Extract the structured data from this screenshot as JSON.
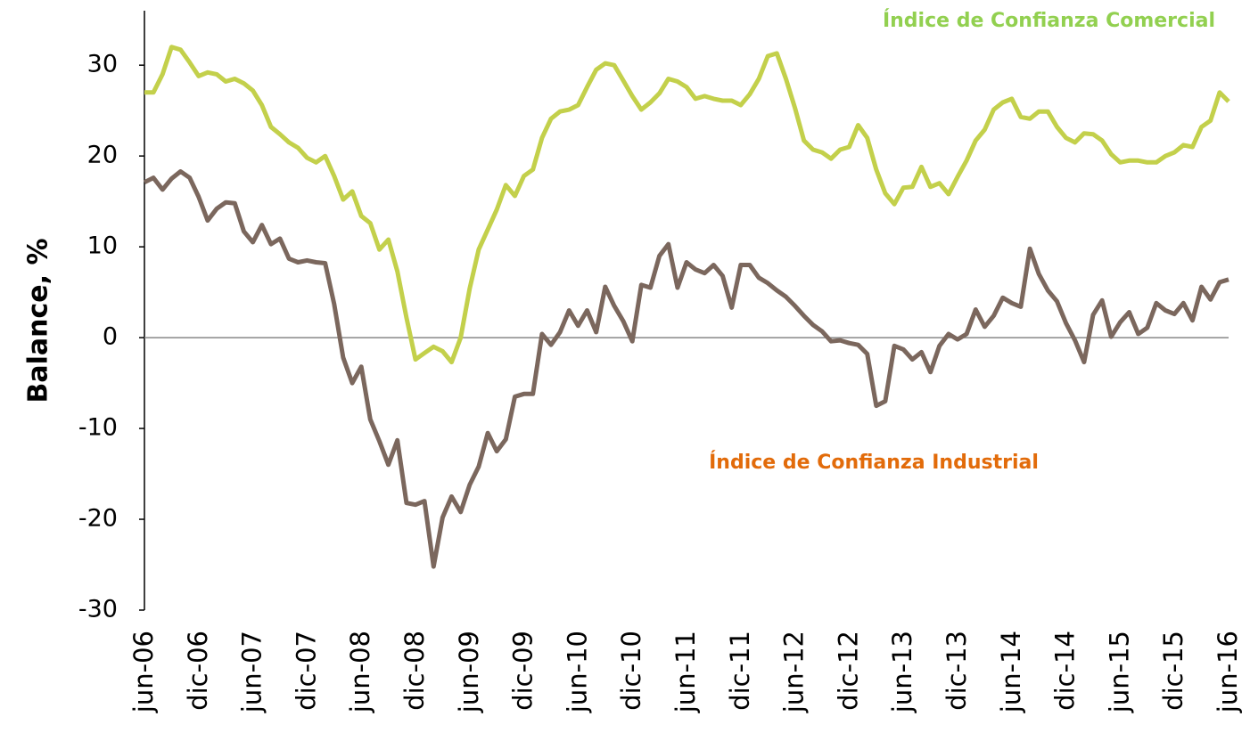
{
  "chart_data": {
    "type": "line",
    "y_label": "Balance, %",
    "categories": [
      "jun-06",
      null,
      null,
      null,
      null,
      null,
      "dic-06",
      null,
      null,
      null,
      null,
      null,
      "jun-07",
      null,
      null,
      null,
      null,
      null,
      "dic-07",
      null,
      null,
      null,
      null,
      null,
      "jun-08",
      null,
      null,
      null,
      null,
      null,
      "dic-08",
      null,
      null,
      null,
      null,
      null,
      "jun-09",
      null,
      null,
      null,
      null,
      null,
      "dic-09",
      null,
      null,
      null,
      null,
      null,
      "jun-10",
      null,
      null,
      null,
      null,
      null,
      "dic-10",
      null,
      null,
      null,
      null,
      null,
      "jun-11",
      null,
      null,
      null,
      null,
      null,
      "dic-11",
      null,
      null,
      null,
      null,
      null,
      "jun-12",
      null,
      null,
      null,
      null,
      null,
      "dic-12",
      null,
      null,
      null,
      null,
      null,
      "jun-13",
      null,
      null,
      null,
      null,
      null,
      "dic-13",
      null,
      null,
      null,
      null,
      null,
      "jun-14",
      null,
      null,
      null,
      null,
      null,
      "dic-14",
      null,
      null,
      null,
      null,
      null,
      "jun-15",
      null,
      null,
      null,
      null,
      null,
      "dic-15",
      null,
      null,
      null,
      null,
      null,
      "jun-16"
    ],
    "series": [
      {
        "name": "Índice de Confianza Comercial",
        "color": "#c3d04b",
        "label_color": "#92d050",
        "values": [
          27,
          27,
          29,
          32,
          31.7,
          30.3,
          28.8,
          29.2,
          29,
          28.2,
          28.5,
          28,
          27.2,
          25.6,
          23.2,
          22.4,
          21.5,
          20.9,
          19.8,
          19.3,
          20,
          17.8,
          15.2,
          16.1,
          13.4,
          12.6,
          9.7,
          10.8,
          7.3,
          2.2,
          -2.4,
          -1.7,
          -1,
          -1.5,
          -2.7,
          0,
          5.4,
          9.7,
          11.9,
          14.1,
          16.8,
          15.6,
          17.8,
          18.5,
          22,
          24.1,
          24.9,
          25.1,
          25.6,
          27.6,
          29.5,
          30.2,
          30,
          28.3,
          26.6,
          25.1,
          25.9,
          26.9,
          28.5,
          28.2,
          27.6,
          26.3,
          26.6,
          26.3,
          26.1,
          26.1,
          25.6,
          26.8,
          28.5,
          31,
          31.3,
          28.5,
          25.3,
          21.7,
          20.7,
          20.4,
          19.7,
          20.7,
          21,
          23.4,
          22,
          18.5,
          15.9,
          14.7,
          16.5,
          16.6,
          18.8,
          16.6,
          17,
          15.8,
          17.7,
          19.5,
          21.7,
          22.9,
          25.1,
          25.9,
          26.3,
          24.3,
          24.1,
          24.9,
          24.9,
          23.2,
          22,
          21.5,
          22.5,
          22.4,
          21.7,
          20.2,
          19.3,
          19.5,
          19.5,
          19.3,
          19.3,
          20,
          20.4,
          21.2,
          21,
          23.2,
          23.9,
          27,
          26
        ]
      },
      {
        "name": "Índice de Confianza Industrial",
        "color": "#7b675d",
        "label_color": "#e26b0a",
        "values": [
          17.1,
          17.6,
          16.3,
          17.5,
          18.3,
          17.6,
          15.5,
          12.9,
          14.2,
          14.9,
          14.8,
          11.7,
          10.5,
          12.4,
          10.3,
          10.9,
          8.7,
          8.3,
          8.5,
          8.3,
          8.2,
          3.7,
          -2.2,
          -5,
          -3.2,
          -9,
          -11.4,
          -14,
          -11.3,
          -18.2,
          -18.4,
          -18,
          -25.2,
          -19.8,
          -17.5,
          -19.2,
          -16.2,
          -14.2,
          -10.5,
          -12.5,
          -11.2,
          -6.5,
          -6.2,
          -6.2,
          0.4,
          -0.8,
          0.6,
          3,
          1.3,
          3,
          0.6,
          5.6,
          3.5,
          1.8,
          -0.4,
          5.8,
          5.5,
          9,
          10.3,
          5.5,
          8.3,
          7.5,
          7.1,
          8,
          6.8,
          3.3,
          8,
          8,
          6.6,
          6,
          5.2,
          4.5,
          3.5,
          2.4,
          1.4,
          0.7,
          -0.4,
          -0.3,
          -0.6,
          -0.8,
          -1.8,
          -7.5,
          -7,
          -0.9,
          -1.3,
          -2.4,
          -1.6,
          -3.8,
          -0.9,
          0.4,
          -0.2,
          0.4,
          3.1,
          1.2,
          2.4,
          4.4,
          3.8,
          3.4,
          9.8,
          7,
          5.2,
          4,
          1.6,
          -0.3,
          -2.7,
          2.5,
          4.1,
          0.1,
          1.7,
          2.8,
          0.4,
          1.1,
          3.8,
          3,
          2.6,
          3.8,
          1.9,
          5.6,
          4.2,
          6.1,
          6.4
        ]
      }
    ],
    "ylim": [
      -30,
      36
    ],
    "yticks": [
      -30,
      -20,
      -10,
      0,
      10,
      20,
      30
    ]
  }
}
